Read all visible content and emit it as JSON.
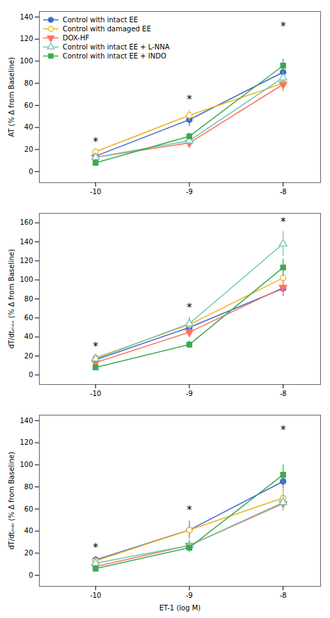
{
  "chart_data": [
    {
      "type": "line",
      "ylabel": "AT (% Δ from Baseline)",
      "x": [
        -10,
        -9,
        -8
      ],
      "xlim": [
        -10.6,
        -7.6
      ],
      "xticks": [
        -10,
        -9,
        -8
      ],
      "ylim": [
        -10,
        145
      ],
      "yticks": [
        0,
        20,
        40,
        60,
        80,
        100,
        120,
        140
      ],
      "legend": "upper left",
      "series": [
        {
          "name": "Control with intact EE",
          "marker": "circle",
          "values": [
            14,
            47,
            90
          ],
          "yerr": [
            3,
            6,
            8
          ]
        },
        {
          "name": "Control with damaged EE",
          "marker": "circle-open",
          "values": [
            18,
            51,
            80
          ],
          "yerr": [
            3,
            5,
            8
          ]
        },
        {
          "name": "DOX-HF",
          "marker": "triangle-down",
          "values": [
            13,
            26,
            79
          ],
          "yerr": [
            2,
            3,
            6
          ]
        },
        {
          "name": "Control with intact EE + L-NNA",
          "marker": "triangle-up-open",
          "values": [
            13,
            28,
            85
          ],
          "yerr": [
            2,
            4,
            7
          ]
        },
        {
          "name": "Control with intact EE + INDO",
          "marker": "square",
          "values": [
            8,
            32,
            96
          ],
          "yerr": [
            2,
            3,
            6
          ]
        }
      ],
      "annotations": [
        {
          "text": "*",
          "x": -10,
          "y": 24
        },
        {
          "text": "*",
          "x": -9,
          "y": 62
        },
        {
          "text": "*",
          "x": -8,
          "y": 128
        }
      ]
    },
    {
      "type": "line",
      "ylabel": "dT/dtₘₐₓ (% Δ from Baseline)",
      "x": [
        -10,
        -9,
        -8
      ],
      "xlim": [
        -10.6,
        -7.6
      ],
      "xticks": [
        -10,
        -9,
        -8
      ],
      "ylim": [
        -10,
        170
      ],
      "yticks": [
        0,
        20,
        40,
        60,
        80,
        100,
        120,
        140,
        160
      ],
      "series": [
        {
          "name": "Control with intact EE",
          "marker": "circle",
          "values": [
            16,
            50,
            91
          ],
          "yerr": [
            3,
            6,
            8
          ]
        },
        {
          "name": "Control with damaged EE",
          "marker": "circle-open",
          "values": [
            18,
            53,
            102
          ],
          "yerr": [
            3,
            6,
            10
          ]
        },
        {
          "name": "DOX-HF",
          "marker": "triangle-down",
          "values": [
            13,
            45,
            92
          ],
          "yerr": [
            2,
            5,
            8
          ]
        },
        {
          "name": "Control with intact EE + L-NNA",
          "marker": "triangle-up-open",
          "values": [
            17,
            54,
            138
          ],
          "yerr": [
            3,
            7,
            13
          ]
        },
        {
          "name": "Control with intact EE + INDO",
          "marker": "square",
          "values": [
            8,
            32,
            113
          ],
          "yerr": [
            2,
            4,
            9
          ]
        }
      ],
      "annotations": [
        {
          "text": "*",
          "x": -10,
          "y": 26
        },
        {
          "text": "*",
          "x": -9,
          "y": 67
        },
        {
          "text": "*",
          "x": -8,
          "y": 157
        }
      ]
    },
    {
      "type": "line",
      "ylabel": "dT/dtₘᵢₙ (% Δ from Baseline)",
      "xlabel": "ET-1 (log M)",
      "x": [
        -10,
        -9,
        -8
      ],
      "xlim": [
        -10.6,
        -7.6
      ],
      "xticks": [
        -10,
        -9,
        -8
      ],
      "ylim": [
        -10,
        145
      ],
      "yticks": [
        0,
        20,
        40,
        60,
        80,
        100,
        120,
        140
      ],
      "series": [
        {
          "name": "Control with intact EE",
          "marker": "circle",
          "values": [
            14,
            41,
            85
          ],
          "yerr": [
            3,
            8,
            9
          ]
        },
        {
          "name": "Control with damaged EE",
          "marker": "circle-open",
          "values": [
            13,
            41,
            70
          ],
          "yerr": [
            3,
            7,
            9
          ]
        },
        {
          "name": "DOX-HF",
          "marker": "triangle-down",
          "values": [
            8,
            27,
            65
          ],
          "yerr": [
            2,
            5,
            7
          ]
        },
        {
          "name": "Control with intact EE + L-NNA",
          "marker": "triangle-up-open",
          "values": [
            11,
            27,
            66
          ],
          "yerr": [
            2,
            4,
            8
          ]
        },
        {
          "name": "Control with intact EE + INDO",
          "marker": "square",
          "values": [
            6,
            25,
            91
          ],
          "yerr": [
            2,
            4,
            9
          ]
        }
      ],
      "annotations": [
        {
          "text": "*",
          "x": -10,
          "y": 22
        },
        {
          "text": "*",
          "x": -9,
          "y": 56
        },
        {
          "text": "*",
          "x": -8,
          "y": 128
        }
      ]
    }
  ]
}
